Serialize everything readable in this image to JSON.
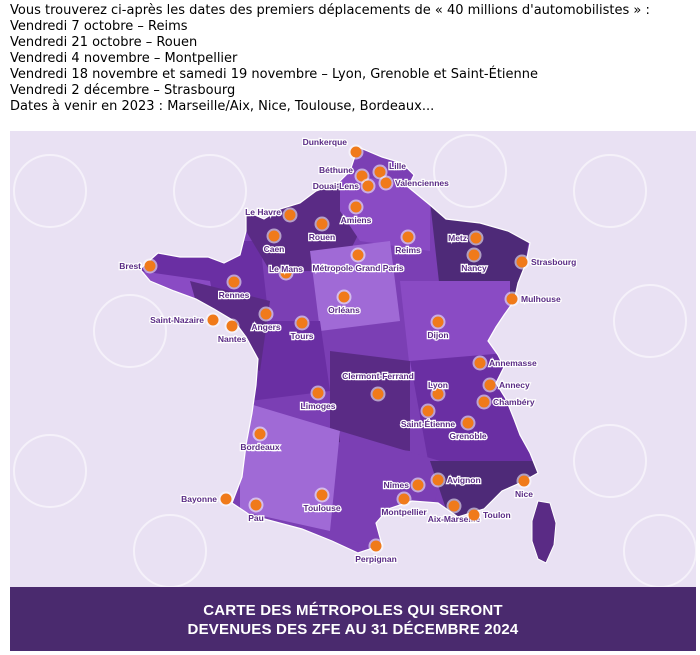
{
  "intro": {
    "lines": [
      "Vous trouverez ci-après les dates des premiers déplacements de « 40 millions d'automobilistes » :",
      "Vendredi 7 octobre – Reims",
      "Vendredi 21 octobre – Rouen",
      "Vendredi 4 novembre – Montpellier",
      "Vendredi 18 novembre et samedi 19 novembre – Lyon, Grenoble et Saint-Étienne",
      "Vendredi 2 décembre – Strasbourg",
      "Dates à venir en 2023 : Marseille/Aix, Nice, Toulouse, Bordeaux..."
    ]
  },
  "map": {
    "banner_line1": "CARTE DES MÉTROPOLES QUI SERONT",
    "banner_line2": "DEVENUES DES ZFE AU 31 DÉCEMBRE 2024",
    "colors": {
      "background": "#e9e1f3",
      "land_palette": [
        "#6a2fa3",
        "#8a4bc4",
        "#5a2b85",
        "#a06ad6",
        "#7b3fb4",
        "#4e2a78"
      ],
      "marker": "#f07a1a",
      "banner": "#4a2a6e"
    },
    "cities": [
      {
        "id": "dunkerque",
        "name": "Dunkerque"
      },
      {
        "id": "bethune",
        "name": "Béthune"
      },
      {
        "id": "lille",
        "name": "Lille"
      },
      {
        "id": "douai-lens",
        "name": "Douai-Lens"
      },
      {
        "id": "valenciennes",
        "name": "Valenciennes"
      },
      {
        "id": "amiens",
        "name": "Amiens"
      },
      {
        "id": "le-havre",
        "name": "Le Havre"
      },
      {
        "id": "rouen",
        "name": "Rouen"
      },
      {
        "id": "caen",
        "name": "Caen"
      },
      {
        "id": "reims",
        "name": "Reims"
      },
      {
        "id": "metz",
        "name": "Metz"
      },
      {
        "id": "nancy",
        "name": "Nancy"
      },
      {
        "id": "strasbourg",
        "name": "Strasbourg"
      },
      {
        "id": "brest",
        "name": "Brest"
      },
      {
        "id": "rennes",
        "name": "Rennes"
      },
      {
        "id": "le-mans",
        "name": "Le Mans"
      },
      {
        "id": "grand-paris",
        "name": "Métropole Grand Paris"
      },
      {
        "id": "orleans",
        "name": "Orléans"
      },
      {
        "id": "mulhouse",
        "name": "Mulhouse"
      },
      {
        "id": "saint-nazaire",
        "name": "Saint-Nazaire"
      },
      {
        "id": "nantes",
        "name": "Nantes"
      },
      {
        "id": "angers",
        "name": "Angers"
      },
      {
        "id": "tours",
        "name": "Tours"
      },
      {
        "id": "dijon",
        "name": "Dijon"
      },
      {
        "id": "annemasse",
        "name": "Annemasse"
      },
      {
        "id": "clermont-ferrand",
        "name": "Clermont-Ferrand"
      },
      {
        "id": "lyon",
        "name": "Lyon"
      },
      {
        "id": "annecy",
        "name": "Annecy"
      },
      {
        "id": "limoges",
        "name": "Limoges"
      },
      {
        "id": "chambery",
        "name": "Chambéry"
      },
      {
        "id": "saint-etienne",
        "name": "Saint-Étienne"
      },
      {
        "id": "grenoble",
        "name": "Grenoble"
      },
      {
        "id": "bordeaux",
        "name": "Bordeaux"
      },
      {
        "id": "nimes",
        "name": "Nîmes"
      },
      {
        "id": "avignon",
        "name": "Avignon"
      },
      {
        "id": "nice",
        "name": "Nice"
      },
      {
        "id": "bayonne",
        "name": "Bayonne"
      },
      {
        "id": "toulouse",
        "name": "Toulouse"
      },
      {
        "id": "montpellier",
        "name": "Montpellier"
      },
      {
        "id": "pau",
        "name": "Pau"
      },
      {
        "id": "aix-marseille",
        "name": "Aix-Marseille"
      },
      {
        "id": "toulon",
        "name": "Toulon"
      },
      {
        "id": "perpignan",
        "name": "Perpignan"
      }
    ]
  }
}
